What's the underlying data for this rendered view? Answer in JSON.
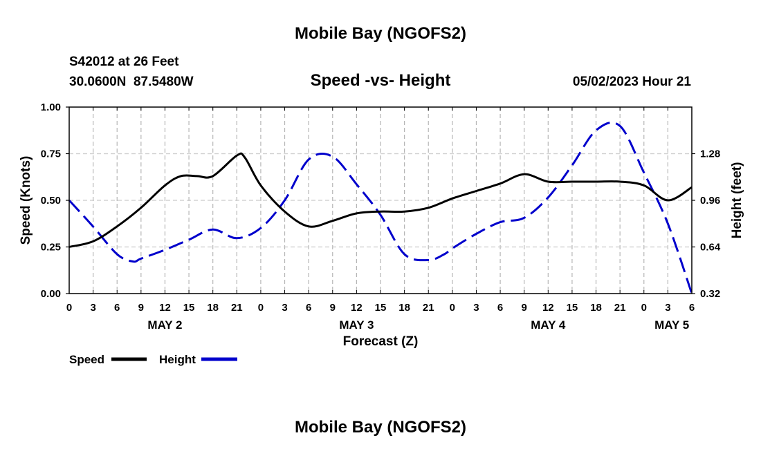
{
  "header": {
    "title": "Mobile Bay (NGOFS2)",
    "station_line": "S42012 at 26 Feet",
    "coords_line": "30.0600N  87.5480W",
    "date_line": "05/02/2023 Hour 21",
    "footer_title": "Mobile Bay (NGOFS2)"
  },
  "chart_data": {
    "type": "line",
    "title": "Speed -vs- Height",
    "xlabel": "Forecast (Z)",
    "ylabel": "Speed (Knots)",
    "ylabel_right": "Height (feet)",
    "x_range": [
      0,
      78
    ],
    "ylim": [
      0,
      1
    ],
    "ylim_right": [
      0.32,
      1.6
    ],
    "x_ticks": [
      0,
      3,
      6,
      9,
      12,
      15,
      18,
      21,
      24,
      27,
      30,
      33,
      36,
      39,
      42,
      45,
      48,
      51,
      54,
      57,
      60,
      63,
      66,
      69,
      72,
      75,
      78
    ],
    "x_tick_labels": [
      "0",
      "3",
      "6",
      "9",
      "12",
      "15",
      "18",
      "21",
      "0",
      "3",
      "6",
      "9",
      "12",
      "15",
      "18",
      "21",
      "0",
      "3",
      "6",
      "9",
      "12",
      "15",
      "18",
      "21",
      "0",
      "3",
      "6"
    ],
    "y_ticks": [
      0,
      0.25,
      0.5,
      0.75,
      1.0
    ],
    "y_tick_labels": [
      "0.00",
      "0.25",
      "0.50",
      "0.75",
      "1.00"
    ],
    "y_right_ticks": [
      0.32,
      0.64,
      0.96,
      1.28
    ],
    "y_right_tick_labels": [
      "0.32",
      "0.64",
      "0.96",
      "1.28"
    ],
    "day_labels": [
      {
        "x": 12,
        "label": "MAY 2"
      },
      {
        "x": 36,
        "label": "MAY 3"
      },
      {
        "x": 60,
        "label": "MAY 4"
      },
      {
        "x": 75.5,
        "label": "MAY 5"
      }
    ],
    "grid": true,
    "series": [
      {
        "name": "Speed",
        "axis": "left",
        "color": "#000000",
        "dashed": false,
        "x": [
          0,
          3,
          6,
          9,
          12,
          14,
          16,
          18,
          21,
          22,
          24,
          27,
          30,
          33,
          36,
          39,
          42,
          45,
          48,
          51,
          54,
          57,
          60,
          63,
          66,
          69,
          72,
          75,
          78
        ],
        "values": [
          0.25,
          0.28,
          0.36,
          0.46,
          0.58,
          0.63,
          0.63,
          0.63,
          0.74,
          0.73,
          0.58,
          0.44,
          0.36,
          0.39,
          0.43,
          0.44,
          0.44,
          0.46,
          0.51,
          0.55,
          0.59,
          0.64,
          0.6,
          0.6,
          0.6,
          0.6,
          0.58,
          0.5,
          0.57
        ]
      },
      {
        "name": "Height",
        "axis": "right",
        "color": "#0000cc",
        "dashed": true,
        "x": [
          0,
          3,
          6,
          8,
          9,
          12,
          15,
          18,
          21,
          24,
          27,
          30,
          33,
          36,
          39,
          42,
          45,
          47,
          48,
          51,
          54,
          57,
          60,
          63,
          66,
          69,
          72,
          75,
          78
        ],
        "values": [
          0.96,
          0.78,
          0.59,
          0.54,
          0.56,
          0.62,
          0.69,
          0.76,
          0.7,
          0.77,
          0.96,
          1.24,
          1.26,
          1.07,
          0.86,
          0.59,
          0.55,
          0.59,
          0.63,
          0.73,
          0.81,
          0.84,
          0.98,
          1.2,
          1.44,
          1.47,
          1.15,
          0.8,
          0.32
        ]
      }
    ]
  }
}
